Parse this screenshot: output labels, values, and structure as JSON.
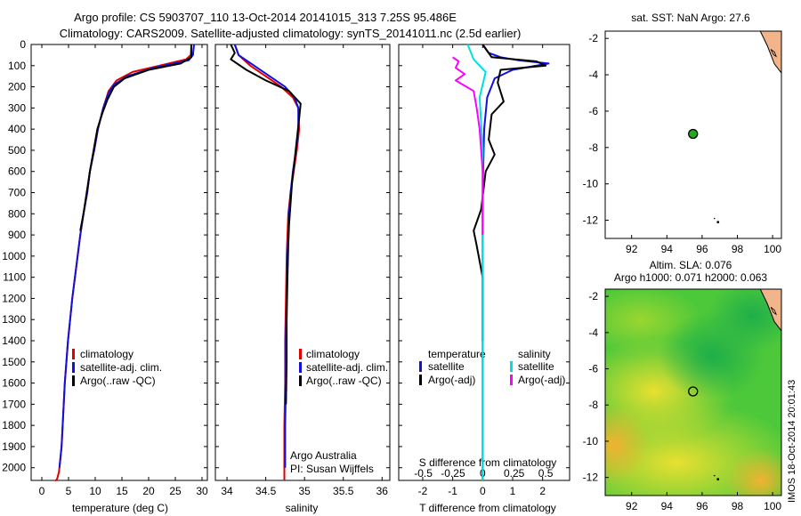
{
  "header": {
    "title_line1": "Argo profile: CS 5903707_110 13-Oct-2014 20141015_313 7.25S 95.486E",
    "title_line2": "Climatology: CARS2009. Satellite-adjusted climatology: synTS_20141011.nc (2.5d earlier)"
  },
  "colors": {
    "climatology": "#e00000",
    "satellite": "#1010e0",
    "argo": "#000000",
    "cyan": "#00e0e0",
    "magenta": "#ff00ff"
  },
  "chart_data": [
    {
      "id": "temperature",
      "type": "line",
      "xlabel": "temperature (deg C)",
      "ylabel": "",
      "xlim": [
        -2,
        31
      ],
      "ylim": [
        2060,
        0
      ],
      "xticks": [
        0,
        5,
        10,
        15,
        20,
        25,
        30
      ],
      "xtick_labels": [
        "0",
        "5",
        "10",
        "15",
        "20",
        "25",
        "30"
      ],
      "yticks": [
        0,
        100,
        200,
        300,
        400,
        500,
        600,
        700,
        800,
        900,
        1000,
        1100,
        1200,
        1300,
        1400,
        1500,
        1600,
        1700,
        1800,
        1900,
        2000
      ],
      "ytick_labels": [
        "0",
        "100",
        "200",
        "300",
        "400",
        "500",
        "600",
        "700",
        "800",
        "900",
        "1000",
        "1100",
        "1200",
        "1300",
        "1400",
        "1500",
        "1600",
        "1700",
        "1800",
        "1900",
        "2000"
      ],
      "legend": [
        "climatology",
        "satellite-adj. clim.",
        "Argo(..raw -QC)"
      ],
      "legend_position": "lower-right",
      "series": [
        {
          "name": "climatology",
          "color": "#e00000",
          "x": [
            28,
            27.9,
            27,
            22,
            17,
            14,
            12.5,
            11.5,
            10.5,
            9.8,
            9,
            8.5,
            7.8,
            7.2,
            6.7,
            6.2,
            5.7,
            5.3,
            4.9,
            4.6,
            4.3,
            4.1,
            3.9,
            3.7,
            3.5,
            3.3,
            3.2,
            3.0,
            2.9,
            2.8,
            2.7,
            2.6,
            2.5
          ],
          "y": [
            0,
            50,
            70,
            100,
            130,
            170,
            220,
            300,
            400,
            500,
            600,
            700,
            800,
            900,
            1000,
            1100,
            1200,
            1300,
            1400,
            1500,
            1600,
            1700,
            1800,
            1900,
            1950,
            2000,
            2020,
            2040,
            2050,
            2055,
            2058,
            2060,
            2060
          ]
        },
        {
          "name": "satellite-adj. clim.",
          "color": "#1010e0",
          "x": [
            28.5,
            28.3,
            27.5,
            21,
            16,
            13.5,
            12.5,
            11.5,
            10.5,
            9.8,
            9,
            8.5,
            7.8,
            7.2,
            6.7,
            6.2,
            5.7,
            5.3,
            4.9,
            4.6,
            4.3,
            4.1,
            3.9,
            3.7,
            3.5,
            3.3
          ],
          "y": [
            0,
            50,
            75,
            110,
            150,
            190,
            230,
            300,
            400,
            500,
            600,
            700,
            800,
            900,
            1000,
            1100,
            1200,
            1300,
            1400,
            1500,
            1600,
            1700,
            1800,
            1900,
            1950,
            2000
          ]
        },
        {
          "name": "Argo(..raw -QC)",
          "color": "#000000",
          "x": [
            28,
            28,
            26,
            20,
            15.5,
            13.5,
            12.3,
            11.4,
            10.4,
            9.7,
            9,
            8.4,
            7.8,
            7.2
          ],
          "y": [
            0,
            60,
            90,
            120,
            160,
            200,
            260,
            320,
            400,
            500,
            600,
            700,
            800,
            880
          ]
        }
      ]
    },
    {
      "id": "salinity",
      "type": "line",
      "xlabel": "salinity",
      "xlim": [
        33.85,
        36.1
      ],
      "ylim": [
        2060,
        0
      ],
      "xticks": [
        34,
        34.5,
        35,
        35.5,
        36
      ],
      "xtick_labels": [
        "34",
        "34.5",
        "35",
        "35.5",
        "36"
      ],
      "legend": [
        "climatology",
        "satellite-adj. clim.",
        "Argo(..raw -QC)"
      ],
      "legend_position": "lower-right",
      "annotations": [
        "Argo Australia",
        "PI: Susan Wijffels"
      ],
      "series": [
        {
          "name": "climatology",
          "color": "#e00000",
          "x": [
            34.1,
            34.15,
            34.3,
            34.5,
            34.7,
            34.85,
            34.92,
            34.93,
            34.9,
            34.86,
            34.82,
            34.79,
            34.77,
            34.76,
            34.75,
            34.75,
            34.74,
            34.74,
            34.74
          ],
          "y": [
            0,
            50,
            100,
            150,
            200,
            250,
            300,
            400,
            500,
            600,
            700,
            800,
            1000,
            1200,
            1400,
            1600,
            1800,
            2000,
            2060
          ]
        },
        {
          "name": "satellite-adj. clim.",
          "color": "#1010e0",
          "x": [
            34.1,
            34.15,
            34.35,
            34.55,
            34.75,
            34.87,
            34.92,
            34.92,
            34.89,
            34.85,
            34.82,
            34.8,
            34.78,
            34.77,
            34.76,
            34.76,
            34.75,
            34.75
          ],
          "y": [
            0,
            50,
            100,
            150,
            200,
            250,
            300,
            400,
            500,
            600,
            700,
            800,
            1000,
            1200,
            1400,
            1600,
            1800,
            2000
          ]
        },
        {
          "name": "Argo(..raw -QC)",
          "color": "#000000",
          "x": [
            34.05,
            34.1,
            34.05,
            34.25,
            34.5,
            34.8,
            34.95,
            34.93,
            34.9,
            34.87,
            34.84,
            34.82,
            34.8,
            34.79,
            34.78,
            34.77,
            34.77,
            34.76
          ],
          "y": [
            0,
            40,
            70,
            120,
            170,
            220,
            280,
            350,
            450,
            550,
            650,
            750,
            850,
            950,
            1100,
            1300,
            1500,
            1700
          ]
        }
      ]
    },
    {
      "id": "difference",
      "type": "line",
      "xlabel": "T difference from climatology",
      "top_label": "S difference from climatology",
      "xlim": [
        -2.8,
        2.9
      ],
      "ylim": [
        2060,
        0
      ],
      "xticks": [
        -2,
        -1,
        0,
        1,
        2
      ],
      "xtick_labels": [
        "-2",
        "-1",
        "0",
        "1",
        "2"
      ],
      "s_xtick_labels": [
        "-0.5",
        "-0.25",
        "0",
        "0.25",
        "0.5"
      ],
      "legend_headers": [
        "temperature",
        "salinity"
      ],
      "legend": [
        "satellite",
        "Argo(-adj)",
        "satellite",
        "Argo(-adj)"
      ],
      "legend_position": "lower-center",
      "series": [
        {
          "name": "T satellite",
          "color": "#1010e0",
          "x": [
            0,
            0.2,
            0.6,
            1.2,
            2.2,
            1.0,
            0.4,
            0.15,
            0.05,
            0,
            0,
            0
          ],
          "y": [
            0,
            40,
            60,
            75,
            90,
            120,
            160,
            250,
            400,
            700,
            1200,
            2060
          ]
        },
        {
          "name": "T Argo(-adj)",
          "color": "#000000",
          "x": [
            0,
            0.3,
            1.8,
            2.1,
            0.6,
            0.5,
            0.7,
            0.3,
            0.2,
            0.4,
            0.1,
            -0.05,
            -0.3,
            -0.2,
            0,
            0
          ],
          "y": [
            0,
            60,
            80,
            100,
            120,
            180,
            270,
            330,
            450,
            520,
            600,
            780,
            880,
            950,
            1100,
            1400
          ]
        },
        {
          "name": "S satellite",
          "color": "#00e0e0",
          "x": [
            -0.5,
            -0.3,
            0.1,
            -0.1,
            0,
            0,
            0
          ],
          "y": [
            0,
            70,
            130,
            250,
            500,
            1000,
            2060
          ]
        },
        {
          "name": "S Argo(-adj)",
          "color": "#ff00ff",
          "x": [
            -1.0,
            -0.8,
            -0.9,
            -0.6,
            -0.9,
            -0.3,
            -0.2,
            -0.1,
            0,
            0
          ],
          "y": [
            60,
            80,
            110,
            140,
            170,
            220,
            300,
            400,
            600,
            900
          ]
        }
      ]
    },
    {
      "id": "sst_map",
      "type": "scatter",
      "title": "sat. SST: NaN Argo: 27.6",
      "xlim": [
        90.5,
        100.5
      ],
      "ylim": [
        -13,
        -1.6
      ],
      "xticks": [
        92,
        94,
        96,
        98,
        100
      ],
      "xtick_labels": [
        "92",
        "94",
        "96",
        "98",
        "100"
      ],
      "yticks": [
        -2,
        -4,
        -6,
        -8,
        -10,
        -12
      ],
      "ytick_labels": [
        "-2",
        "-4",
        "-6",
        "-8",
        "-10",
        "-12"
      ],
      "points": [
        {
          "x": 95.486,
          "y": -7.25,
          "color": "#22aa22"
        }
      ]
    },
    {
      "id": "sla_map",
      "type": "heatmap",
      "title_line1": "Altim. SLA: 0.076",
      "title_line2": "Argo h1000: 0.071 h2000: 0.063",
      "side_label": "IMOS 18-Oct-2014 20:01:43",
      "xlim": [
        90.5,
        100.5
      ],
      "ylim": [
        -13,
        -1.6
      ],
      "xticks": [
        92,
        94,
        96,
        98,
        100
      ],
      "xtick_labels": [
        "92",
        "94",
        "96",
        "98",
        "100"
      ],
      "yticks": [
        -2,
        -4,
        -6,
        -8,
        -10,
        -12
      ],
      "ytick_labels": [
        "-2",
        "-4",
        "-6",
        "-8",
        "-10",
        "-12"
      ],
      "points": [
        {
          "x": 95.486,
          "y": -7.25
        }
      ]
    }
  ]
}
